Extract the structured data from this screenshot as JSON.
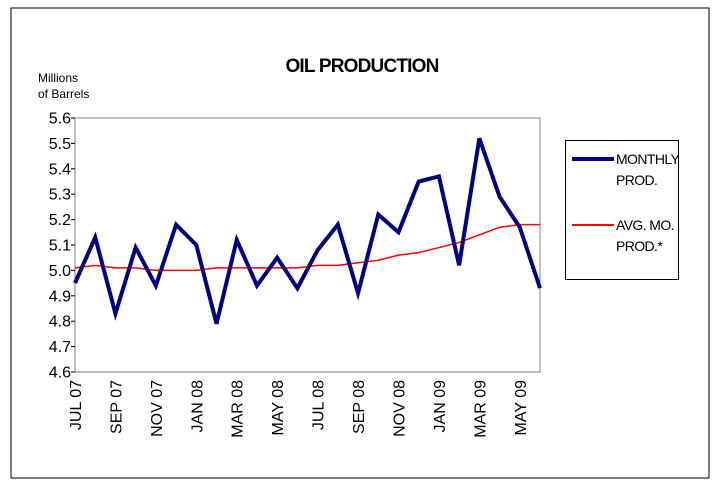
{
  "chart_data": {
    "type": "line",
    "title": "OIL PRODUCTION",
    "ylabel_lines": [
      "Millions",
      "of Barrels"
    ],
    "categories": [
      "JUL 07",
      null,
      "SEP 07",
      null,
      "NOV 07",
      null,
      "JAN 08",
      null,
      "MAR 08",
      null,
      "MAY 08",
      null,
      "JUL 08",
      null,
      "SEP 08",
      null,
      "NOV 08",
      null,
      "JAN 09",
      null,
      "MAR 09",
      null,
      "MAY 09",
      null
    ],
    "series": [
      {
        "name": "MONTHLY PROD.",
        "color": "#000080",
        "width": 4,
        "values": [
          4.95,
          5.13,
          4.83,
          5.09,
          4.94,
          5.18,
          5.1,
          4.79,
          5.12,
          4.94,
          5.05,
          4.93,
          5.08,
          5.18,
          4.91,
          5.22,
          5.15,
          5.35,
          5.37,
          5.02,
          5.52,
          5.29,
          5.17,
          4.93
        ]
      },
      {
        "name": "AVG. MO. PROD.*",
        "color": "#ff0000",
        "width": 1.5,
        "values": [
          5.01,
          5.02,
          5.01,
          5.01,
          5.0,
          5.0,
          5.0,
          5.01,
          5.01,
          5.01,
          5.01,
          5.01,
          5.02,
          5.02,
          5.03,
          5.04,
          5.06,
          5.07,
          5.09,
          5.11,
          5.14,
          5.17,
          5.18,
          5.18
        ]
      }
    ],
    "ylim": [
      4.6,
      5.6
    ],
    "yticks": [
      4.6,
      4.7,
      4.8,
      4.9,
      {
        "value": 5,
        "label": "5.0"
      },
      5.1,
      5.2,
      5.3,
      5.4,
      5.5,
      5.6
    ],
    "grid": false,
    "legend": "right"
  }
}
